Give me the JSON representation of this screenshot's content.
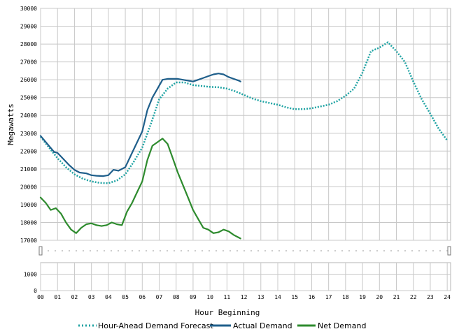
{
  "chart_data": {
    "type": "line",
    "title": "",
    "xlabel": "Hour Beginning",
    "ylabel": "Megawatts",
    "xlim": [
      0,
      24.2
    ],
    "ylim": [
      17000,
      30000
    ],
    "x_ticks": [
      "00",
      "01",
      "02",
      "03",
      "04",
      "05",
      "06",
      "07",
      "08",
      "09",
      "10",
      "11",
      "12",
      "13",
      "14",
      "15",
      "16",
      "17",
      "18",
      "19",
      "20",
      "21",
      "22",
      "23",
      "24"
    ],
    "y_ticks": [
      "17000",
      "18000",
      "19000",
      "20000",
      "21000",
      "22000",
      "23000",
      "24000",
      "25000",
      "26000",
      "27000",
      "28000",
      "29000",
      "30000"
    ],
    "lower_panel": {
      "ylim": [
        0,
        1700
      ],
      "y_ticks": [
        "0",
        "1000"
      ]
    },
    "grid": true,
    "legend_position": "bottom",
    "series": [
      {
        "name": "Hour-Ahead Demand Forecast",
        "color": "#1fa3a3",
        "style": "dotted",
        "x": [
          0,
          0.5,
          1,
          1.5,
          2,
          2.5,
          3,
          3.5,
          4,
          4.5,
          5,
          5.5,
          6,
          6.5,
          7,
          7.5,
          8,
          8.5,
          9,
          9.5,
          10,
          10.5,
          11,
          11.5,
          12,
          12.5,
          13,
          13.5,
          14,
          14.5,
          15,
          15.5,
          16,
          16.5,
          17,
          17.5,
          18,
          18.5,
          19,
          19.5,
          20,
          20.5,
          21,
          21.5,
          22,
          22.5,
          23,
          23.5,
          24
        ],
        "values": [
          22800,
          22200,
          21600,
          21100,
          20700,
          20450,
          20300,
          20220,
          20200,
          20350,
          20700,
          21400,
          22200,
          23500,
          24900,
          25500,
          25850,
          25850,
          25700,
          25650,
          25600,
          25580,
          25500,
          25350,
          25150,
          24950,
          24800,
          24700,
          24600,
          24450,
          24350,
          24350,
          24400,
          24500,
          24600,
          24800,
          25100,
          25500,
          26400,
          27600,
          27800,
          28100,
          27600,
          27000,
          25900,
          24900,
          24100,
          23250,
          22600
        ]
      },
      {
        "name": "Actual Demand",
        "color": "#1f5f8b",
        "style": "solid",
        "x": [
          0,
          0.4,
          0.8,
          1,
          1.3,
          1.7,
          2,
          2.3,
          2.7,
          3,
          3.3,
          3.7,
          4,
          4.3,
          4.6,
          5,
          5.3,
          5.6,
          6,
          6.3,
          6.6,
          6.9,
          7.2,
          7.5,
          7.8,
          8.1,
          8.4,
          8.7,
          9,
          9.3,
          9.6,
          9.9,
          10.2,
          10.5,
          10.8,
          11.1,
          11.4,
          11.7,
          11.8
        ],
        "values": [
          22850,
          22400,
          21950,
          21900,
          21600,
          21200,
          20950,
          20800,
          20750,
          20650,
          20620,
          20600,
          20650,
          20950,
          20900,
          21100,
          21700,
          22300,
          23100,
          24300,
          25000,
          25500,
          26000,
          26050,
          26050,
          26050,
          26000,
          25950,
          25900,
          26000,
          26100,
          26200,
          26300,
          26350,
          26300,
          26150,
          26050,
          25950,
          25900
        ]
      },
      {
        "name": "Net Demand",
        "color": "#2e8b2e",
        "style": "solid",
        "x": [
          0,
          0.3,
          0.6,
          0.9,
          1.2,
          1.5,
          1.8,
          2.1,
          2.4,
          2.7,
          3,
          3.3,
          3.6,
          3.9,
          4.2,
          4.5,
          4.8,
          5.1,
          5.4,
          5.7,
          6,
          6.3,
          6.6,
          6.9,
          7.2,
          7.5,
          7.8,
          8.1,
          8.4,
          8.7,
          9,
          9.3,
          9.6,
          9.9,
          10.2,
          10.5,
          10.8,
          11.1,
          11.4,
          11.6,
          11.8
        ],
        "values": [
          19400,
          19100,
          18700,
          18800,
          18500,
          18000,
          17600,
          17400,
          17700,
          17900,
          17950,
          17850,
          17800,
          17850,
          18000,
          17900,
          17850,
          18600,
          19100,
          19700,
          20300,
          21500,
          22300,
          22500,
          22700,
          22400,
          21600,
          20800,
          20100,
          19400,
          18700,
          18200,
          17700,
          17600,
          17400,
          17450,
          17600,
          17500,
          17300,
          17200,
          17100
        ]
      }
    ]
  }
}
